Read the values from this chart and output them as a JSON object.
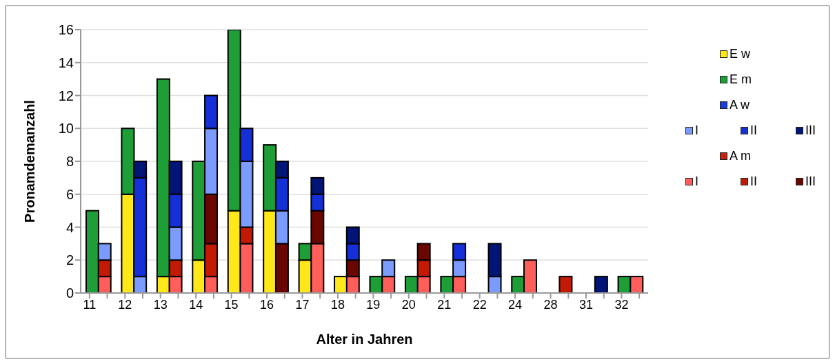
{
  "chart_data": {
    "type": "bar",
    "stacked": true,
    "xlabel": "Alter in Jahren",
    "ylabel": "Pronamdemanzahl",
    "categories": [
      "11",
      null,
      "12",
      null,
      "13",
      null,
      "14",
      null,
      "15",
      null,
      "16",
      null,
      "17",
      null,
      "18",
      null,
      "19",
      null,
      "20",
      null,
      "21",
      null,
      "22",
      null,
      "24",
      null,
      "28",
      null,
      "31",
      null,
      "32",
      null
    ],
    "ylim": [
      0,
      16
    ],
    "yticks": [
      0,
      2,
      4,
      6,
      8,
      10,
      12,
      14,
      16
    ],
    "grid": "y",
    "legend": "right",
    "series": [
      {
        "name": "E w",
        "color": "#ffe81a",
        "values": [
          null,
          null,
          6,
          null,
          1,
          null,
          2,
          null,
          5,
          null,
          5,
          null,
          2,
          null,
          1,
          null,
          null,
          null,
          null,
          null,
          null,
          null,
          null,
          null,
          null,
          null,
          null,
          null,
          null,
          null,
          null,
          null
        ]
      },
      {
        "name": "E m",
        "color": "#1e9e37",
        "values": [
          5,
          null,
          4,
          null,
          12,
          null,
          6,
          null,
          11,
          null,
          4,
          null,
          1,
          null,
          null,
          null,
          1,
          null,
          1,
          null,
          1,
          null,
          null,
          null,
          1,
          null,
          null,
          null,
          null,
          null,
          1,
          null
        ]
      },
      {
        "name": "A m",
        "color": "#c0260f",
        "values": [
          null,
          null,
          null,
          null,
          null,
          null,
          null,
          null,
          null,
          null,
          null,
          null,
          null,
          null,
          null,
          null,
          null,
          null,
          null,
          null,
          null,
          null,
          null,
          null,
          null,
          null,
          null,
          null,
          null,
          null,
          null,
          null
        ]
      },
      {
        "name": "I",
        "color": "#ff5e5a",
        "values": [
          null,
          1,
          null,
          null,
          null,
          1,
          null,
          1,
          null,
          3,
          null,
          null,
          null,
          3,
          null,
          1,
          null,
          1,
          null,
          1,
          null,
          1,
          null,
          null,
          null,
          2,
          null,
          null,
          null,
          null,
          null,
          1
        ]
      },
      {
        "name": "II",
        "color": "#c21a05",
        "values": [
          null,
          1,
          null,
          null,
          null,
          1,
          null,
          2,
          null,
          1,
          null,
          null,
          null,
          null,
          null,
          null,
          null,
          null,
          null,
          1,
          null,
          null,
          null,
          null,
          null,
          null,
          null,
          1,
          null,
          null,
          null,
          null
        ]
      },
      {
        "name": "III",
        "color": "#6a0600",
        "values": [
          null,
          null,
          null,
          null,
          null,
          null,
          null,
          3,
          null,
          null,
          null,
          3,
          null,
          2,
          null,
          1,
          null,
          null,
          null,
          1,
          null,
          null,
          null,
          null,
          null,
          null,
          null,
          null,
          null,
          null,
          null,
          null
        ]
      },
      {
        "name": "A w",
        "color": "#1a3fd6",
        "values": [
          null,
          null,
          null,
          null,
          null,
          null,
          null,
          null,
          null,
          null,
          null,
          null,
          null,
          null,
          null,
          null,
          null,
          null,
          null,
          null,
          null,
          null,
          null,
          null,
          null,
          null,
          null,
          null,
          null,
          null,
          null,
          null
        ]
      },
      {
        "name": "I",
        "color": "#7b9bff",
        "values": [
          null,
          1,
          null,
          1,
          null,
          2,
          null,
          4,
          null,
          4,
          null,
          2,
          null,
          null,
          null,
          null,
          null,
          1,
          null,
          null,
          null,
          1,
          null,
          1,
          null,
          null,
          null,
          null,
          null,
          null,
          null,
          null
        ]
      },
      {
        "name": "II",
        "color": "#1530d6",
        "values": [
          null,
          null,
          null,
          6,
          null,
          2,
          null,
          2,
          null,
          2,
          null,
          2,
          null,
          1,
          null,
          1,
          null,
          null,
          null,
          null,
          null,
          1,
          null,
          null,
          null,
          null,
          null,
          null,
          null,
          null,
          null,
          null
        ]
      },
      {
        "name": "III",
        "color": "#001575",
        "values": [
          null,
          null,
          null,
          1,
          null,
          2,
          null,
          null,
          null,
          null,
          null,
          1,
          null,
          1,
          null,
          1,
          null,
          null,
          null,
          null,
          null,
          null,
          null,
          2,
          null,
          null,
          null,
          null,
          null,
          1,
          null,
          null
        ]
      }
    ]
  }
}
